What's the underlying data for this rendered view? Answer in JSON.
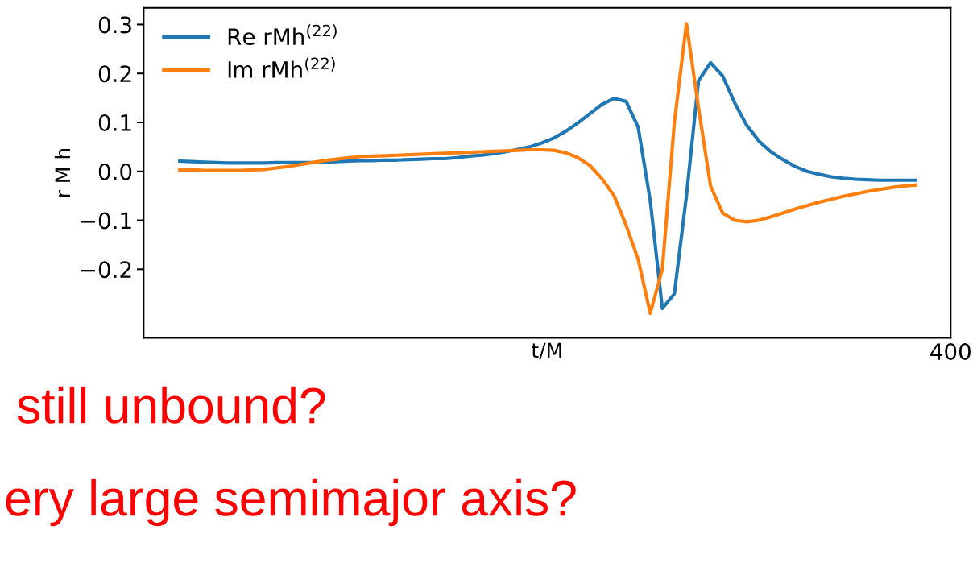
{
  "chart_data": {
    "type": "line",
    "ylabel": "r M h",
    "xlabel": "t/M",
    "categories": [
      null,
      null,
      null,
      null,
      null,
      null,
      null,
      null,
      null,
      null,
      null,
      null,
      null,
      null,
      null,
      null,
      null,
      null,
      null,
      null,
      null,
      null,
      null,
      null,
      null,
      null,
      null,
      null,
      null,
      null,
      null,
      null,
      null,
      null,
      null,
      null,
      null,
      null,
      null,
      null,
      null,
      null,
      null,
      null,
      null,
      null,
      null,
      null,
      null,
      null,
      null,
      null,
      null,
      null,
      null,
      null,
      null,
      null,
      null,
      null,
      null,
      null
    ],
    "series": [
      {
        "name": "Re rMh$^{(22)}$",
        "color": "#1f77b4",
        "values": [
          0.021,
          0.02,
          0.019,
          0.018,
          0.017,
          0.017,
          0.017,
          0.017,
          0.018,
          0.018,
          0.018,
          0.018,
          0.019,
          0.02,
          0.021,
          0.022,
          0.022,
          0.023,
          0.023,
          0.024,
          0.025,
          0.026,
          0.026,
          0.028,
          0.031,
          0.033,
          0.036,
          0.04,
          0.045,
          0.05,
          0.058,
          0.068,
          0.082,
          0.099,
          0.118,
          0.137,
          0.149,
          0.143,
          0.09,
          -0.06,
          -0.28,
          -0.25,
          -0.05,
          0.185,
          0.222,
          0.195,
          0.14,
          0.094,
          0.062,
          0.04,
          0.024,
          0.01,
          0.0,
          -0.006,
          -0.011,
          -0.014,
          -0.016,
          -0.017,
          -0.018,
          -0.018,
          -0.018,
          -0.018
        ]
      },
      {
        "name": "Im rMh$^{(22)}$",
        "color": "#ff7f0e",
        "values": [
          0.003,
          0.003,
          0.002,
          0.002,
          0.002,
          0.002,
          0.003,
          0.004,
          0.007,
          0.01,
          0.014,
          0.018,
          0.022,
          0.025,
          0.028,
          0.03,
          0.031,
          0.032,
          0.033,
          0.034,
          0.035,
          0.036,
          0.037,
          0.038,
          0.039,
          0.04,
          0.041,
          0.042,
          0.043,
          0.044,
          0.044,
          0.043,
          0.038,
          0.028,
          0.012,
          -0.015,
          -0.05,
          -0.11,
          -0.18,
          -0.29,
          -0.2,
          0.1,
          0.302,
          0.13,
          -0.03,
          -0.085,
          -0.1,
          -0.103,
          -0.1,
          -0.093,
          -0.085,
          -0.077,
          -0.07,
          -0.063,
          -0.057,
          -0.051,
          -0.046,
          -0.041,
          -0.037,
          -0.033,
          -0.03,
          -0.028
        ]
      }
    ],
    "ylim": [
      -0.34,
      0.334
    ],
    "yticks": [
      {
        "value": -0.2,
        "label": "−0.2"
      },
      {
        "value": -0.1,
        "label": "−0.1"
      },
      {
        "value": 0.0,
        "label": "0.0"
      },
      {
        "value": 0.1,
        "label": "0.1"
      },
      {
        "value": 0.2,
        "label": "0.2"
      },
      {
        "value": 0.3,
        "label": "0.3"
      }
    ],
    "legend": "top left",
    "grid": false,
    "marker": "none",
    "line_style": "solid",
    "annotations": [
      "still unbound?",
      "ery large semimajor axis?",
      "400"
    ]
  }
}
